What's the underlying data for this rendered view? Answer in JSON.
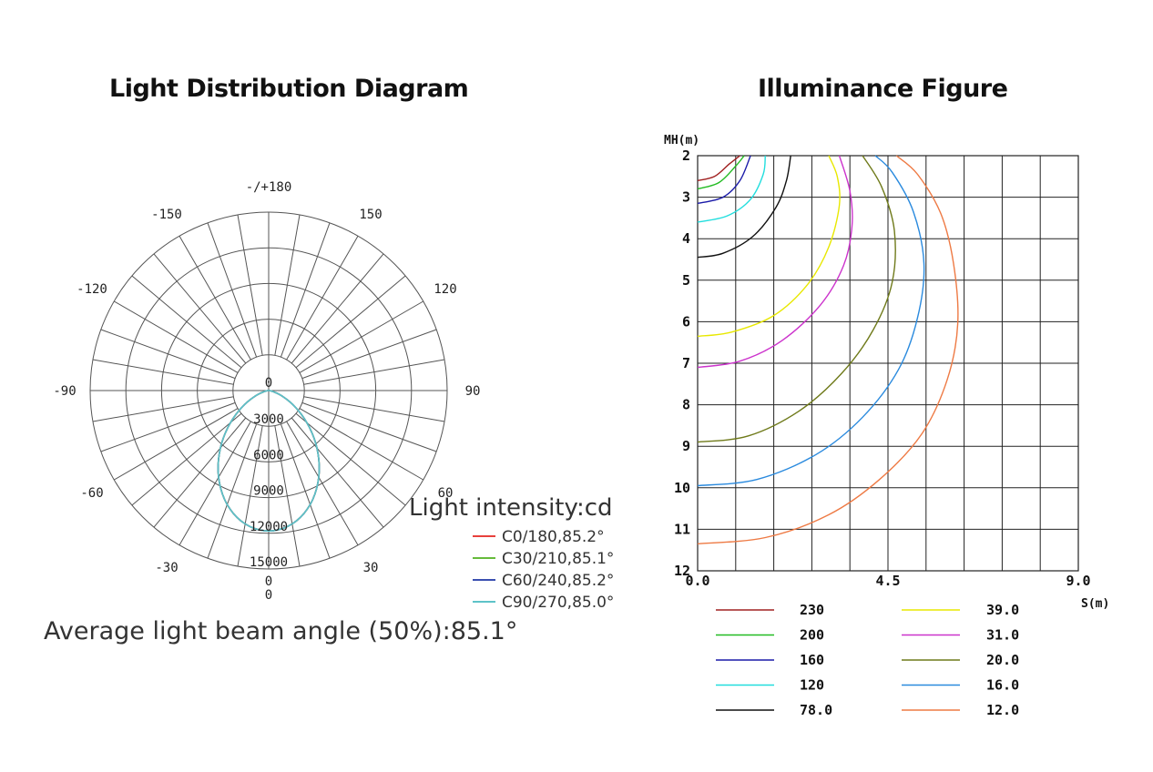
{
  "polar_title": "Light Distribution Diagram",
  "iso_title": "Illuminance Figure",
  "unit_label": "Light intensity:cd",
  "beam_angle_label": "Average light beam angle (50%):85.1°",
  "chart_data": [
    {
      "type": "polar",
      "title": "Light Distribution Diagram",
      "angle_labels": [
        {
          "text": "-/+180",
          "angle": 180
        },
        {
          "text": "150",
          "angle": 150
        },
        {
          "text": "-150",
          "angle": -150
        },
        {
          "text": "120",
          "angle": 120
        },
        {
          "text": "-120",
          "angle": -120
        },
        {
          "text": "90",
          "angle": 90
        },
        {
          "text": "-90",
          "angle": -90
        },
        {
          "text": "60",
          "angle": 60
        },
        {
          "text": "-60",
          "angle": -60
        },
        {
          "text": "30",
          "angle": 30
        },
        {
          "text": "-30",
          "angle": -30
        },
        {
          "text": "0",
          "angle": 0
        }
      ],
      "radial_labels": [
        "0",
        "3000",
        "6000",
        "9000",
        "12000",
        "15000"
      ],
      "radial_max": 15000,
      "unit": "Light intensity:cd",
      "series": [
        {
          "name": "C0/180,85.2°",
          "color": "#e8413c",
          "peak": 11800,
          "exponent": 2.35
        },
        {
          "name": "C30/210,85.1°",
          "color": "#66bb3a",
          "peak": 11800,
          "exponent": 2.35
        },
        {
          "name": "C60/240,85.2°",
          "color": "#3a4fb0",
          "peak": 11800,
          "exponent": 2.35
        },
        {
          "name": "C90/270,85.0°",
          "color": "#5ec3c8",
          "peak": 11800,
          "exponent": 2.35
        }
      ]
    },
    {
      "type": "line",
      "title": "Illuminance Figure",
      "xlabel": "S(m)",
      "ylabel": "MH(m)",
      "xlim": [
        0,
        9
      ],
      "ylim": [
        2,
        12
      ],
      "x_tick_labels": [
        "0.0",
        "4.5",
        "9.0"
      ],
      "y_tick_labels": [
        "2",
        "3",
        "4",
        "5",
        "6",
        "7",
        "8",
        "9",
        "10",
        "11",
        "12"
      ],
      "series": [
        {
          "name": "230",
          "color": "#a02020",
          "points": [
            [
              0,
              2.6
            ],
            [
              0.4,
              2.5
            ],
            [
              0.75,
              2.2
            ],
            [
              1.0,
              2.0
            ]
          ]
        },
        {
          "name": "200",
          "color": "#22bb22",
          "points": [
            [
              0,
              2.8
            ],
            [
              0.5,
              2.65
            ],
            [
              0.9,
              2.25
            ],
            [
              1.1,
              2.0
            ]
          ]
        },
        {
          "name": "160",
          "color": "#1a1aa8",
          "points": [
            [
              0,
              3.15
            ],
            [
              0.6,
              3.0
            ],
            [
              1.0,
              2.6
            ],
            [
              1.25,
              2.0
            ]
          ]
        },
        {
          "name": "120",
          "color": "#22dede",
          "points": [
            [
              0,
              3.6
            ],
            [
              0.7,
              3.45
            ],
            [
              1.25,
              3.05
            ],
            [
              1.55,
              2.45
            ],
            [
              1.6,
              2.0
            ]
          ]
        },
        {
          "name": "78.0",
          "color": "#111111",
          "points": [
            [
              0,
              4.45
            ],
            [
              0.6,
              4.35
            ],
            [
              1.3,
              3.95
            ],
            [
              1.85,
              3.25
            ],
            [
              2.1,
              2.6
            ],
            [
              2.2,
              2.0
            ]
          ]
        },
        {
          "name": "39.0",
          "color": "#e8e800",
          "points": [
            [
              0,
              6.35
            ],
            [
              0.8,
              6.25
            ],
            [
              1.8,
              5.85
            ],
            [
              2.6,
              5.1
            ],
            [
              3.1,
              4.2
            ],
            [
              3.35,
              3.2
            ],
            [
              3.3,
              2.5
            ],
            [
              3.1,
              2.0
            ]
          ]
        },
        {
          "name": "31.0",
          "color": "#cc33cc",
          "points": [
            [
              0,
              7.1
            ],
            [
              1.0,
              6.95
            ],
            [
              2.0,
              6.45
            ],
            [
              2.9,
              5.6
            ],
            [
              3.45,
              4.65
            ],
            [
              3.65,
              3.7
            ],
            [
              3.6,
              2.85
            ],
            [
              3.35,
              2.0
            ]
          ]
        },
        {
          "name": "20.0",
          "color": "#6f7a1a",
          "points": [
            [
              0,
              8.9
            ],
            [
              1.2,
              8.75
            ],
            [
              2.4,
              8.15
            ],
            [
              3.4,
              7.25
            ],
            [
              4.15,
              6.2
            ],
            [
              4.6,
              5.05
            ],
            [
              4.65,
              3.8
            ],
            [
              4.35,
              2.75
            ],
            [
              3.9,
              2.0
            ]
          ]
        },
        {
          "name": "16.0",
          "color": "#2a8ade",
          "points": [
            [
              0,
              9.95
            ],
            [
              1.4,
              9.8
            ],
            [
              2.8,
              9.2
            ],
            [
              3.9,
              8.3
            ],
            [
              4.75,
              7.15
            ],
            [
              5.2,
              5.9
            ],
            [
              5.35,
              4.6
            ],
            [
              5.1,
              3.35
            ],
            [
              4.6,
              2.4
            ],
            [
              4.2,
              2.0
            ]
          ]
        },
        {
          "name": "12.0",
          "color": "#ee7a44",
          "points": [
            [
              0,
              11.35
            ],
            [
              1.6,
              11.2
            ],
            [
              3.1,
              10.65
            ],
            [
              4.3,
              9.8
            ],
            [
              5.3,
              8.7
            ],
            [
              5.9,
              7.4
            ],
            [
              6.15,
              6.05
            ],
            [
              6.05,
              4.6
            ],
            [
              5.75,
              3.4
            ],
            [
              5.2,
              2.45
            ],
            [
              4.7,
              2.0
            ]
          ]
        }
      ]
    }
  ]
}
